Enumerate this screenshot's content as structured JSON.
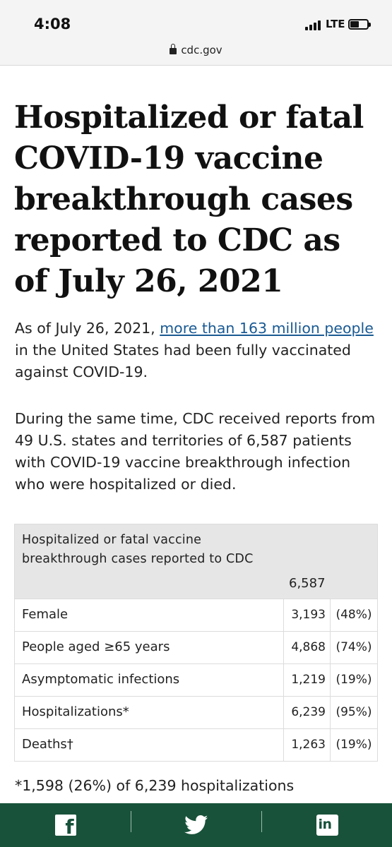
{
  "status_bar": {
    "time": "4:08",
    "network": "LTE"
  },
  "browser": {
    "url": "cdc.gov"
  },
  "article": {
    "title": "Hospitalized or fatal COVID-19 vaccine breakthrough cases reported to CDC as of July 26, 2021",
    "para1_prefix": "As of July 26, 2021, ",
    "para1_link": "more than 163 million people",
    "para1_suffix": " in the United States had been fully vaccinated against COVID-19.",
    "para2": "During the same time, CDC received reports from 49 U.S. states and territories of 6,587 patients with COVID-19 vaccine breakthrough infection who were hospitalized or died."
  },
  "table": {
    "header_label": "Hospitalized or fatal vaccine breakthrough cases reported to CDC",
    "header_total": "6,587",
    "rows": [
      {
        "label": "Female",
        "count": "3,193",
        "pct": "(48%)"
      },
      {
        "label": "People aged ≥65 years",
        "count": "4,868",
        "pct": "(74%)"
      },
      {
        "label": "Asymptomatic infections",
        "count": "1,219",
        "pct": "(19%)"
      },
      {
        "label": "Hospitalizations*",
        "count": "6,239",
        "pct": "(95%)"
      },
      {
        "label": "Deaths†",
        "count": "1,263",
        "pct": "(19%)"
      }
    ]
  },
  "footnote": "*1,598 (26%) of 6,239 hospitalizations",
  "share_bar": {
    "background": "#18523a",
    "icons": [
      "facebook-icon",
      "twitter-icon",
      "linkedin-icon"
    ],
    "linkedin_text": "in"
  },
  "colors": {
    "link": "#1a5a93",
    "table_header_bg": "#e6e6e6"
  }
}
